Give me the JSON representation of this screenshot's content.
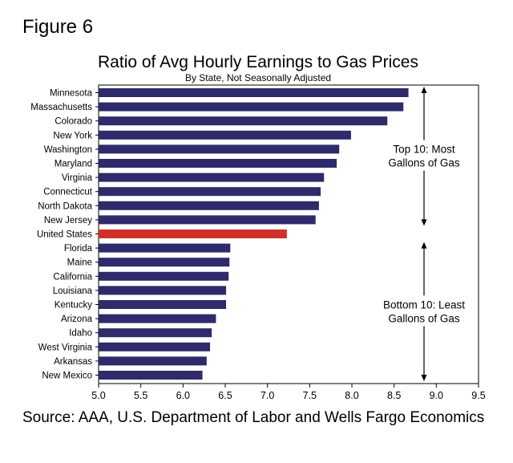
{
  "figure_label": "Figure 6",
  "source": "Source: AAA, U.S. Department of Labor and Wells Fargo Economics",
  "colors": {
    "bar": "#2e2a6b",
    "highlight": "#d1302a",
    "frame": "#000000",
    "grid": "#d9d9d9"
  },
  "chart_data": {
    "type": "bar",
    "orientation": "horizontal",
    "title": "Ratio of Avg Hourly Earnings to Gas Prices",
    "subtitle": "By State, Not Seasonally Adjusted",
    "xlabel": "",
    "ylabel": "",
    "xlim": [
      5.0,
      9.5
    ],
    "ticks": [
      "5.0",
      "5.5",
      "6.0",
      "6.5",
      "7.0",
      "7.5",
      "8.0",
      "8.5",
      "9.0",
      "9.5"
    ],
    "categories": [
      "Minnesota",
      "Massachusetts",
      "Colorado",
      "New York",
      "Washington",
      "Maryland",
      "Virginia",
      "Connecticut",
      "North Dakota",
      "New Jersey",
      "United States",
      "Florida",
      "Maine",
      "California",
      "Louisiana",
      "Kentucky",
      "Arizona",
      "Idaho",
      "West Virginia",
      "Arkansas",
      "New Mexico"
    ],
    "values": [
      8.67,
      8.61,
      8.42,
      7.99,
      7.85,
      7.82,
      7.67,
      7.63,
      7.61,
      7.57,
      7.23,
      6.56,
      6.55,
      6.54,
      6.51,
      6.51,
      6.39,
      6.34,
      6.32,
      6.28,
      6.23
    ],
    "highlight": "United States",
    "annotations": [
      {
        "text_lines": [
          "Top 10: Most",
          "Gallons of Gas"
        ],
        "range": [
          "Minnesota",
          "New Jersey"
        ]
      },
      {
        "text_lines": [
          "Bottom 10: Least",
          "Gallons of Gas"
        ],
        "range": [
          "Florida",
          "New Mexico"
        ]
      }
    ]
  }
}
